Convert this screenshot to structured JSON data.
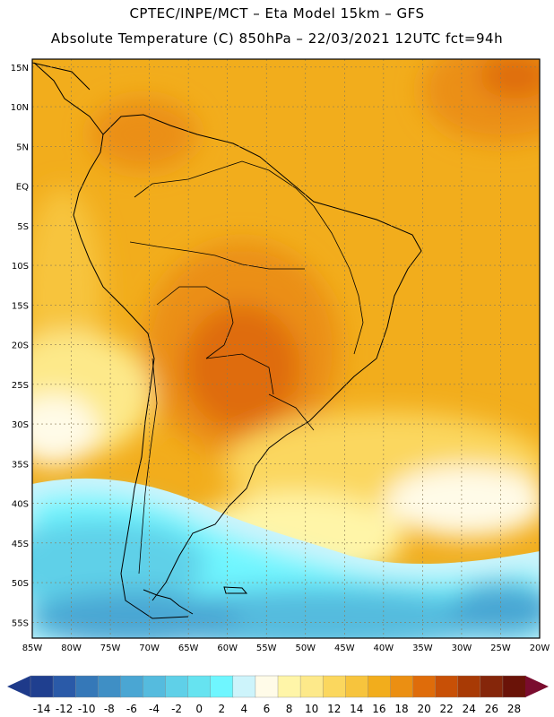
{
  "header": {
    "line1": "CPTEC/INPE/MCT –  Eta Model 15km – GFS",
    "line2": "Absolute Temperature (C) 850hPa – 22/03/2021 12UTC fct=94h"
  },
  "map": {
    "lat_labels": [
      "15N",
      "10N",
      "5N",
      "EQ",
      "5S",
      "10S",
      "15S",
      "20S",
      "25S",
      "30S",
      "35S",
      "40S",
      "45S",
      "50S",
      "55S"
    ],
    "lon_labels": [
      "85W",
      "80W",
      "75W",
      "70W",
      "65W",
      "60W",
      "55W",
      "50W",
      "45W",
      "40W",
      "35W",
      "30W",
      "25W",
      "20W"
    ],
    "lon_range": [
      -85,
      -20
    ],
    "lat_range": [
      -57,
      16
    ]
  },
  "colorbar": {
    "labels": [
      "-14",
      "-12",
      "-10",
      "-8",
      "-6",
      "-4",
      "-2",
      "0",
      "2",
      "4",
      "6",
      "8",
      "10",
      "12",
      "14",
      "16",
      "18",
      "20",
      "22",
      "24",
      "26",
      "28"
    ],
    "colors": [
      "#1f3f8f",
      "#2a5aa8",
      "#3578b8",
      "#3f8fc5",
      "#4aa6d3",
      "#55bbde",
      "#5fd0e8",
      "#66e3f0",
      "#6ff6ff",
      "#cdf4fb",
      "#fffbe8",
      "#fff5a8",
      "#fde98a",
      "#fbd75e",
      "#f7c43d",
      "#f2ad1c",
      "#eb8f12",
      "#df6c0a",
      "#c85006",
      "#a83a05",
      "#85260a",
      "#6a1308"
    ],
    "low_end_color": "#1e3a8a",
    "high_end_color": "#7a0c2e"
  }
}
